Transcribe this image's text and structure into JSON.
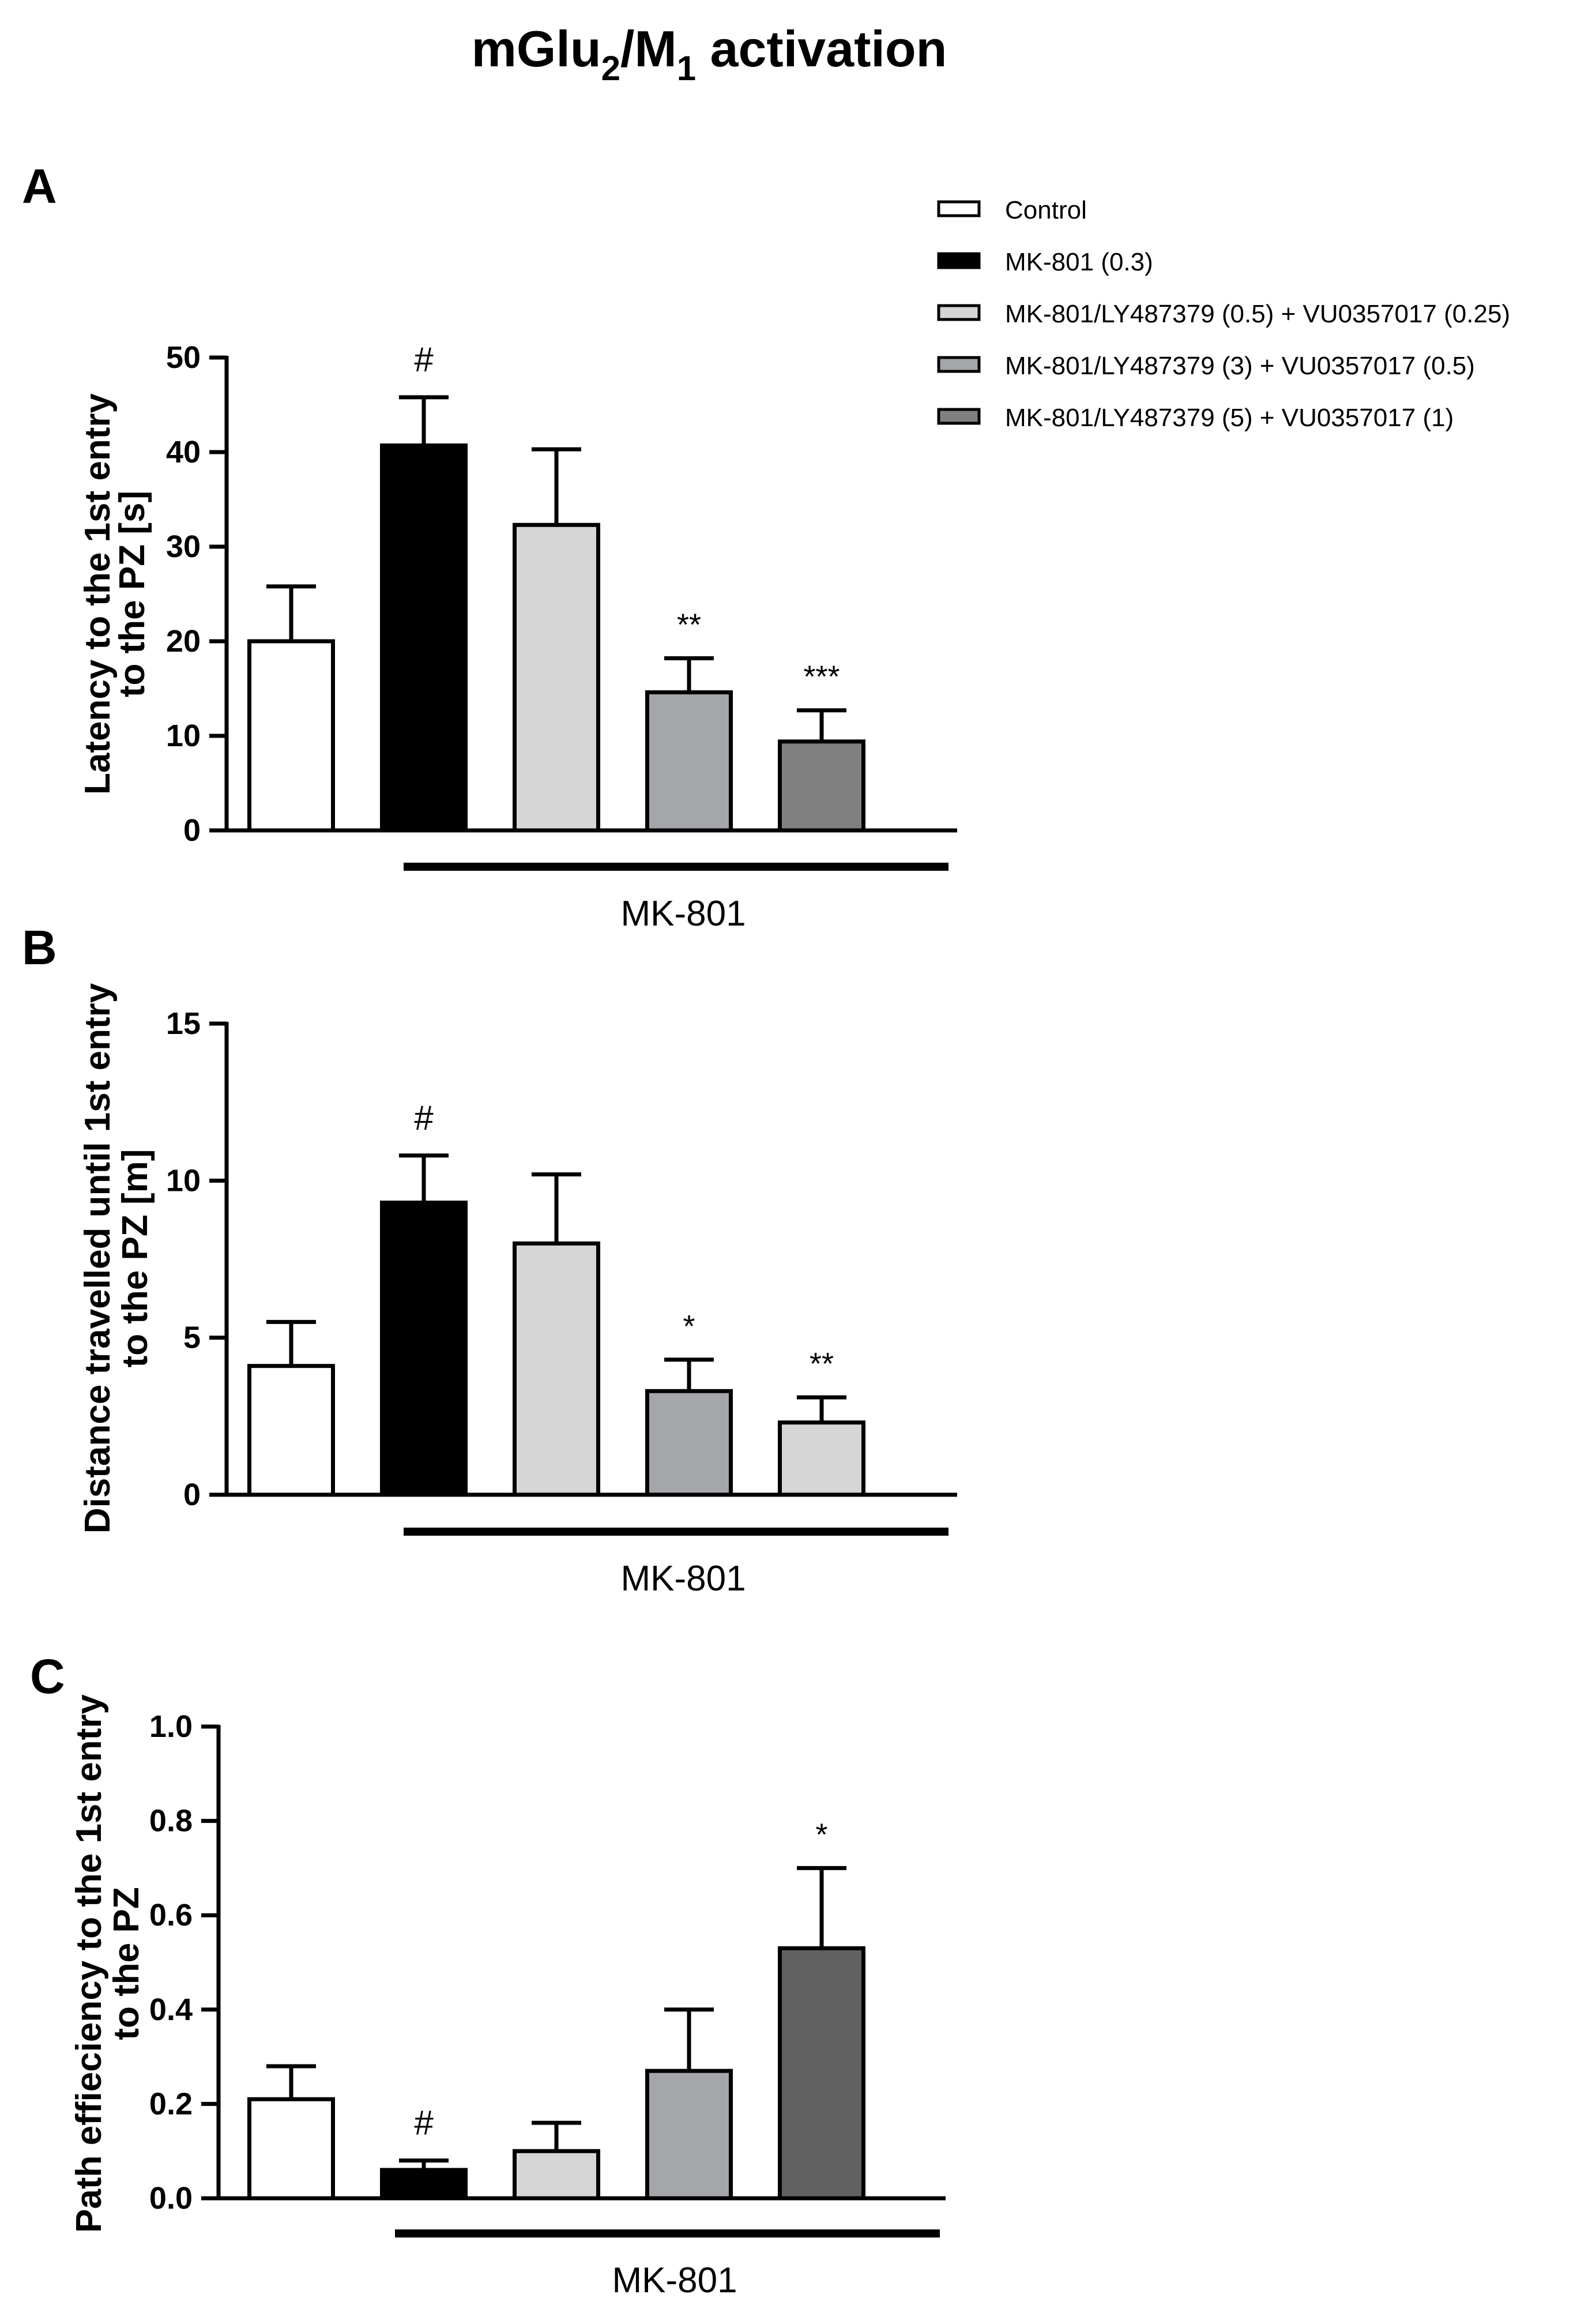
{
  "title": {
    "prefix": "mGlu",
    "sub1": "2",
    "mid": "/M",
    "sub2": "1",
    "suffix": " activation"
  },
  "legend": [
    {
      "label": "Control",
      "color": "#ffffff"
    },
    {
      "label": "MK-801 (0.3)",
      "color": "#000000"
    },
    {
      "label": "MK-801/LY487379 (0.5) + VU0357017 (0.25)",
      "color": "#d6d6d6"
    },
    {
      "label": "MK-801/LY487379 (3) + VU0357017 (0.5)",
      "color": "#a5a6a9"
    },
    {
      "label": "MK-801/LY487379 (5) + VU0357017 (1)",
      "color": "#808080"
    }
  ],
  "chart_data": [
    {
      "type": "bar",
      "panel": "A",
      "categories": [
        "Control",
        "MK-801 (0.3)",
        "MK-801/LY487379 (0.5) + VU0357017 (0.25)",
        "MK-801/LY487379 (3) + VU0357017 (0.5)",
        "MK-801/LY487379 (5) + VU0357017 (1)"
      ],
      "values": [
        20.0,
        40.7,
        32.3,
        14.6,
        9.4
      ],
      "errors": [
        5.8,
        5.1,
        8.0,
        3.6,
        3.3
      ],
      "annotations": [
        "",
        "#",
        "",
        "**",
        "***"
      ],
      "colors": [
        "#ffffff",
        "#000000",
        "#d6d6d6",
        "#a5a6a9",
        "#808080"
      ],
      "ylabel": [
        "Latency to the 1st entry",
        "to the PZ [s]"
      ],
      "yticks": [
        "0",
        "10",
        "20",
        "30",
        "40",
        "50"
      ],
      "ylim": [
        0,
        50
      ],
      "group_label": "MK-801"
    },
    {
      "type": "bar",
      "panel": "B",
      "categories": [
        "Control",
        "MK-801 (0.3)",
        "MK-801/LY487379 (0.5) + VU0357017 (0.25)",
        "MK-801/LY487379 (3) + VU0357017 (0.5)",
        "MK-801/LY487379 (5) + VU0357017 (1)"
      ],
      "values": [
        4.1,
        9.3,
        8.0,
        3.3,
        2.3
      ],
      "errors": [
        1.4,
        1.5,
        2.2,
        1.0,
        0.8
      ],
      "annotations": [
        "",
        "#",
        "",
        "*",
        "**"
      ],
      "colors": [
        "#ffffff",
        "#000000",
        "#d6d6d6",
        "#a5a6a9",
        "#d6d6d6"
      ],
      "ylabel": [
        "Distance travelled until 1st entry",
        "to the PZ [m]"
      ],
      "yticks": [
        "0",
        "5",
        "10",
        "15"
      ],
      "ylim": [
        0,
        15
      ],
      "group_label": "MK-801"
    },
    {
      "type": "bar",
      "panel": "C",
      "categories": [
        "Control",
        "MK-801 (0.3)",
        "MK-801/LY487379 (0.5) + VU0357017 (0.25)",
        "MK-801/LY487379 (3) + VU0357017 (0.5)",
        "MK-801/LY487379 (5) + VU0357017 (1)"
      ],
      "values": [
        0.21,
        0.06,
        0.1,
        0.27,
        0.53
      ],
      "errors": [
        0.07,
        0.02,
        0.06,
        0.13,
        0.17
      ],
      "annotations": [
        "",
        "#",
        "",
        "",
        "*"
      ],
      "colors": [
        "#ffffff",
        "#000000",
        "#d6d6d6",
        "#a5a6a9",
        "#616161"
      ],
      "ylabel": [
        "Path effieciency to the 1st entry",
        "to the PZ"
      ],
      "yticks": [
        "0.0",
        "0.2",
        "0.4",
        "0.6",
        "0.8",
        "1.0"
      ],
      "ylim": [
        0,
        1.0
      ],
      "group_label": "MK-801"
    }
  ]
}
